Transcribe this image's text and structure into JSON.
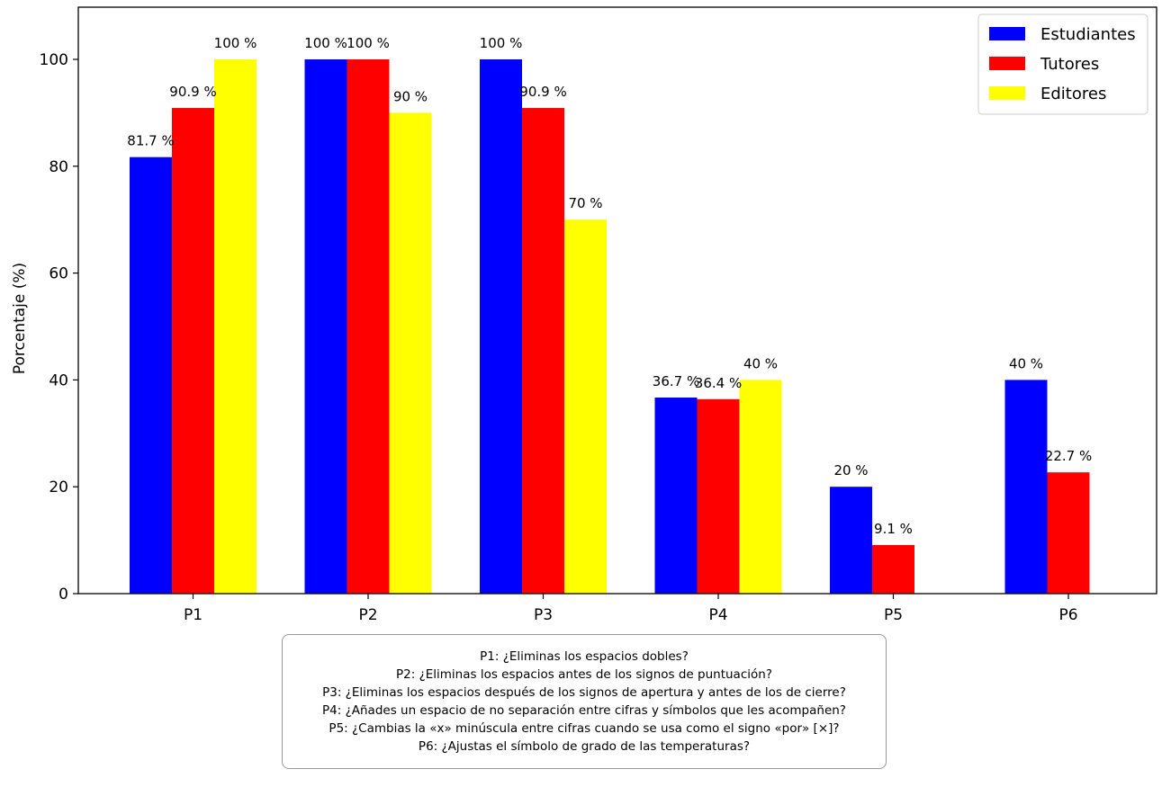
{
  "chart_data": {
    "type": "bar",
    "title": "",
    "xlabel": "",
    "ylabel": "Porcentaje (%)",
    "ylim": [
      0,
      110
    ],
    "yticks": [
      "0",
      "20",
      "40",
      "60",
      "80",
      "100"
    ],
    "categories": [
      "P1",
      "P2",
      "P3",
      "P4",
      "P5",
      "P6"
    ],
    "series": [
      {
        "name": "Estudiantes",
        "color": "#0000ff",
        "values": [
          81.7,
          100,
          100,
          36.7,
          20,
          40
        ],
        "labels": [
          "81.7 %",
          "100 %",
          "100 %",
          "36.7 %",
          "20 %",
          "40 %"
        ]
      },
      {
        "name": "Tutores",
        "color": "#ff0000",
        "values": [
          90.9,
          100,
          90.9,
          36.4,
          9.1,
          22.7
        ],
        "labels": [
          "90.9 %",
          "100 %",
          "90.9 %",
          "36.4 %",
          "9.1 %",
          "22.7 %"
        ]
      },
      {
        "name": "Editores",
        "color": "#ffff00",
        "values": [
          100,
          90,
          70,
          40,
          null,
          null
        ],
        "labels": [
          "100 %",
          "90 %",
          "70 %",
          "40 %",
          null,
          null
        ]
      }
    ],
    "legend_position": "top-right",
    "notes": [
      "P1: ¿Eliminas los espacios dobles?",
      "P2: ¿Eliminas los espacios antes de los signos de puntuación?",
      "P3: ¿Eliminas los espacios después de los signos de apertura y antes de los de cierre?",
      "P4: ¿Añades un espacio de no separación entre cifras y símbolos que les acompañen?",
      "P5: ¿Cambias la «x» minúscula entre cifras cuando se usa como el signo «por» [×]?",
      "P6: ¿Ajustas el símbolo de grado de las temperaturas?"
    ]
  }
}
